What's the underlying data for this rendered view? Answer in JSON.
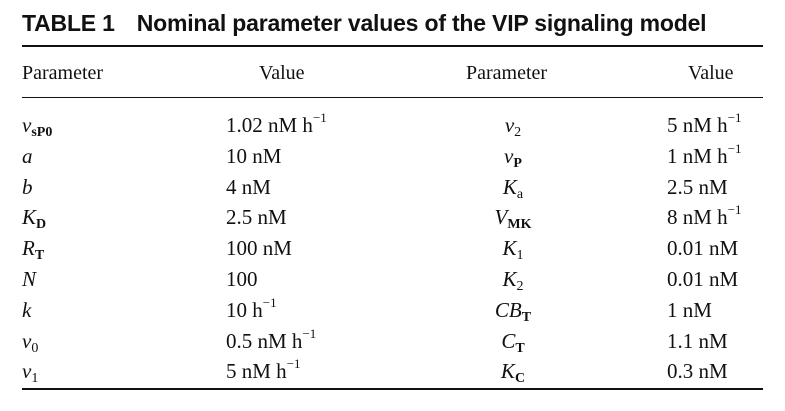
{
  "caption": {
    "label": "TABLE 1",
    "title": "Nominal parameter values of the VIP signaling model"
  },
  "headers": [
    "Parameter",
    "Value",
    "Parameter",
    "Value"
  ],
  "rows": [
    [
      {
        "main": "v",
        "sub": "sP0"
      },
      {
        "main": "1.02 nM h",
        "sup": "−1"
      },
      {
        "main": "v",
        "sub": "2"
      },
      {
        "main": "5 nM h",
        "sup": "−1"
      }
    ],
    [
      {
        "main": "a",
        "sub": ""
      },
      {
        "main": "10 nM",
        "sup": ""
      },
      {
        "main": "v",
        "sub": "P"
      },
      {
        "main": "1 nM h",
        "sup": "−1"
      }
    ],
    [
      {
        "main": "b",
        "sub": ""
      },
      {
        "main": "4 nM",
        "sup": ""
      },
      {
        "main": "K",
        "sub": "a"
      },
      {
        "main": "2.5 nM",
        "sup": ""
      }
    ],
    [
      {
        "main": "K",
        "sub": "D"
      },
      {
        "main": "2.5 nM",
        "sup": ""
      },
      {
        "main": "V",
        "sub": "MK"
      },
      {
        "main": "8 nM h",
        "sup": "−1"
      }
    ],
    [
      {
        "main": "R",
        "sub": "T"
      },
      {
        "main": "100 nM",
        "sup": ""
      },
      {
        "main": "K",
        "sub": "1"
      },
      {
        "main": "0.01 nM",
        "sup": ""
      }
    ],
    [
      {
        "main": "N",
        "sub": ""
      },
      {
        "main": "100",
        "sup": ""
      },
      {
        "main": "K",
        "sub": "2"
      },
      {
        "main": "0.01 nM",
        "sup": ""
      }
    ],
    [
      {
        "main": "k",
        "sub": ""
      },
      {
        "main": "10 h",
        "sup": "−1"
      },
      {
        "main": "CB",
        "sub": "T"
      },
      {
        "main": "1 nM",
        "sup": ""
      }
    ],
    [
      {
        "main": "v",
        "sub": "0"
      },
      {
        "main": "0.5 nM h",
        "sup": "−1"
      },
      {
        "main": "C",
        "sub": "T"
      },
      {
        "main": "1.1 nM",
        "sup": ""
      }
    ],
    [
      {
        "main": "v",
        "sub": "1"
      },
      {
        "main": "5 nM h",
        "sup": "−1"
      },
      {
        "main": "K",
        "sub": "C"
      },
      {
        "main": "0.3 nM",
        "sup": ""
      }
    ]
  ]
}
